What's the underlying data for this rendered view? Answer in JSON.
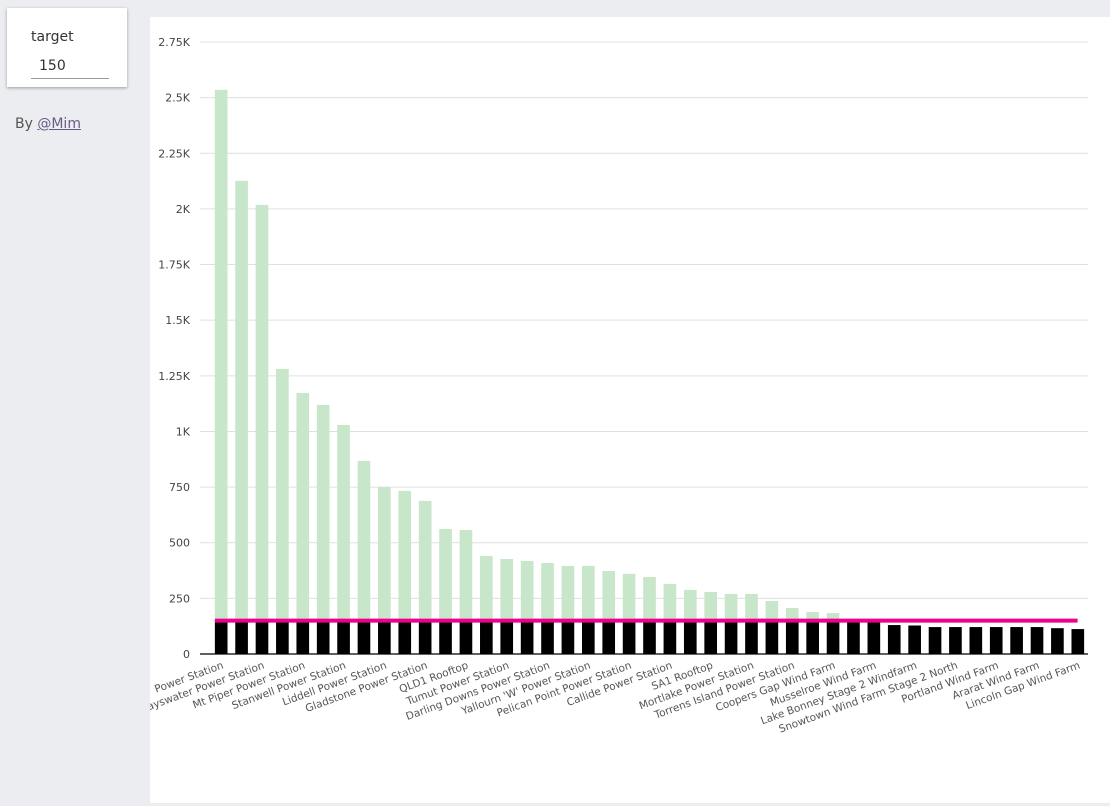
{
  "control": {
    "label": "target",
    "value": "150"
  },
  "credit": {
    "prefix": "By ",
    "link": "@Mim"
  },
  "chart_data": {
    "type": "bar",
    "stacked_by_target": true,
    "target": 150,
    "ylim": [
      0,
      2750
    ],
    "yticks": [
      0,
      250,
      500,
      750,
      1000,
      1250,
      1500,
      1750,
      2000,
      2250,
      2500,
      2750
    ],
    "ytick_labels": [
      "0",
      "250",
      "500",
      "750",
      "1K",
      "1.25K",
      "1.5K",
      "1.75K",
      "2K",
      "2.25K",
      "2.5K",
      "2.75K"
    ],
    "grid": true,
    "colors": {
      "below_target": "#000000",
      "above_target": "#c8e6c9",
      "target_line": "#ec008c"
    },
    "categories": [
      "Power Station",
      "",
      "Bayswater Power Station",
      "",
      "Mt Piper Power Station",
      "",
      "Stanwell Power Station",
      "",
      "Liddell Power Station",
      "",
      "Gladstone Power Station",
      "",
      "QLD1 Rooftop",
      "",
      "Tumut Power Station",
      "",
      "Darling Downs Power Station",
      "",
      "Yallourn 'W' Power Station",
      "",
      "Pelican Point Power Station",
      "",
      "Callide Power Station",
      "",
      "SA1 Rooftop",
      "",
      "Mortlake Power Station",
      "",
      "Torrens Island Power Station",
      "",
      "Coopers Gap Wind Farm",
      "",
      "Musselroe Wind Farm",
      "",
      "Lake Bonney Stage 2 Windfarm",
      "",
      "Snowtown Wind Farm Stage 2 North",
      "",
      "Portland Wind Farm",
      "",
      "Ararat Wind Farm",
      "",
      "Lincoln Gap Wind Farm"
    ],
    "values": [
      2535,
      2126,
      2018,
      1281,
      1173,
      1119,
      1029,
      867,
      751,
      733,
      688,
      562,
      557,
      440,
      427,
      418,
      409,
      396,
      396,
      373,
      360,
      346,
      315,
      288,
      279,
      270,
      270,
      238,
      207,
      189,
      184,
      152,
      150,
      130,
      128,
      121,
      121,
      121,
      121,
      121,
      121,
      116,
      112
    ]
  }
}
